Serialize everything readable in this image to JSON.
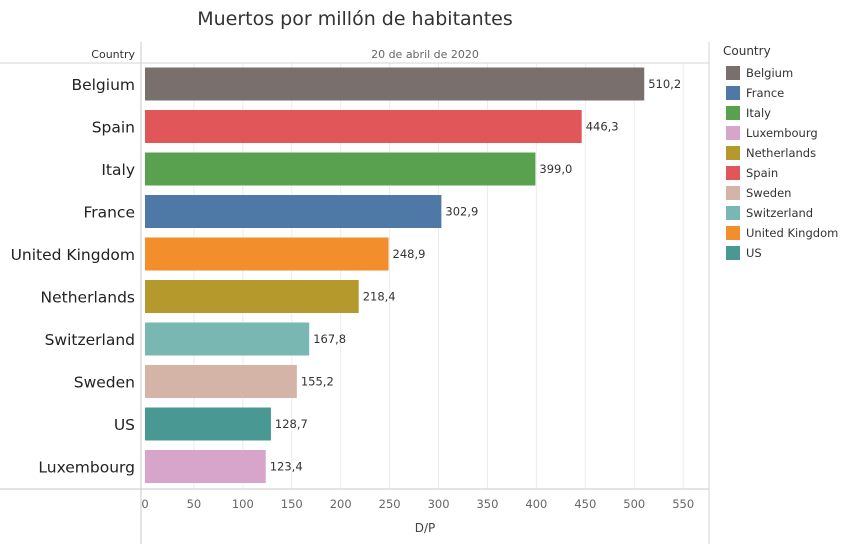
{
  "title": "Muertos por millón de habitantes",
  "chart_data": {
    "type": "bar",
    "orientation": "horizontal",
    "title": "Muertos por millón de habitantes",
    "row_header": "Country",
    "column_header": "20 de abril de 2020",
    "xlabel": "D/P",
    "ylabel": "Country",
    "xlim": [
      0,
      560
    ],
    "xticks": [
      0,
      50,
      100,
      150,
      200,
      250,
      300,
      350,
      400,
      450,
      500,
      550
    ],
    "xtick_labels": [
      "0",
      "50",
      "100",
      "150",
      "200",
      "250",
      "300",
      "350",
      "400",
      "450",
      "500",
      "550"
    ],
    "categories": [
      "Belgium",
      "Spain",
      "Italy",
      "France",
      "United Kingdom",
      "Netherlands",
      "Switzerland",
      "Sweden",
      "US",
      "Luxembourg"
    ],
    "values": [
      510.2,
      446.3,
      399.0,
      302.9,
      248.9,
      218.4,
      167.8,
      155.2,
      128.7,
      123.4
    ],
    "value_labels": [
      "510,2",
      "446,3",
      "399,0",
      "302,9",
      "248,9",
      "218,4",
      "167,8",
      "155,2",
      "128,7",
      "123,4"
    ],
    "colors": [
      "#79706e",
      "#e15759",
      "#59a14f",
      "#4e79a7",
      "#f28e2b",
      "#b6992d",
      "#79b7b2",
      "#d4b4a6",
      "#499894",
      "#d7a5c9"
    ],
    "grid": true,
    "legend_position": "right"
  },
  "legend": {
    "title": "Country",
    "items": [
      {
        "label": "Belgium",
        "color": "#79706e"
      },
      {
        "label": "France",
        "color": "#4e79a7"
      },
      {
        "label": "Italy",
        "color": "#59a14f"
      },
      {
        "label": "Luxembourg",
        "color": "#d7a5c9"
      },
      {
        "label": "Netherlands",
        "color": "#b6992d"
      },
      {
        "label": "Spain",
        "color": "#e15759"
      },
      {
        "label": "Sweden",
        "color": "#d4b4a6"
      },
      {
        "label": "Switzerland",
        "color": "#79b7b2"
      },
      {
        "label": "United Kingdom",
        "color": "#f28e2b"
      },
      {
        "label": "US",
        "color": "#499894"
      }
    ]
  }
}
